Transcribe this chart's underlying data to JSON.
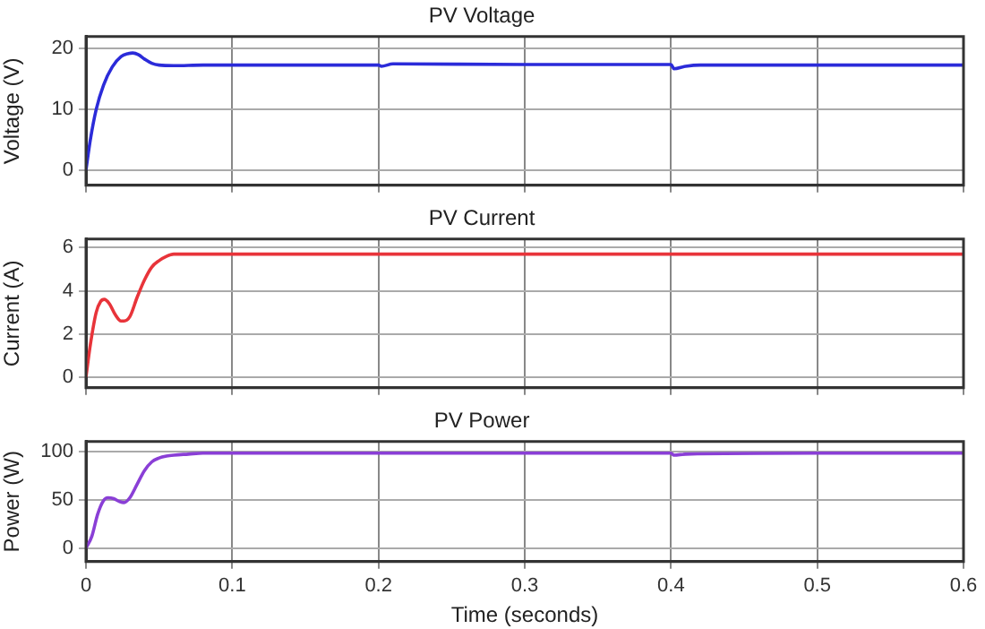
{
  "chart_data": [
    {
      "type": "line",
      "title": "PV Voltage",
      "ylabel": "Voltage (V)",
      "xlim": [
        0,
        0.6
      ],
      "xticks": [
        0,
        0.1,
        0.2,
        0.3,
        0.4,
        0.5,
        0.6
      ],
      "ylim": [
        -2.5,
        22
      ],
      "yticks": [
        0,
        10,
        20
      ],
      "grid": true,
      "tick_labels": "y",
      "legend": false,
      "series": [
        {
          "color": "#2b2bd9",
          "x": [
            0,
            0.003,
            0.007,
            0.012,
            0.018,
            0.024,
            0.029,
            0.032,
            0.036,
            0.04,
            0.045,
            0.05,
            0.06,
            0.08,
            0.1,
            0.15,
            0.2,
            0.202,
            0.21,
            0.3,
            0.4,
            0.402,
            0.41,
            0.42,
            0.45,
            0.5,
            0.6
          ],
          "values": [
            0,
            5,
            10,
            14,
            17,
            18.7,
            19.2,
            19.3,
            19,
            18.3,
            17.6,
            17.3,
            17.2,
            17.3,
            17.3,
            17.3,
            17.3,
            17.1,
            17.5,
            17.4,
            17.4,
            16.7,
            17.1,
            17.3,
            17.3,
            17.3,
            17.3
          ]
        }
      ]
    },
    {
      "type": "line",
      "title": "PV Current",
      "ylabel": "Current (A)",
      "xlim": [
        0,
        0.6
      ],
      "xticks": [
        0,
        0.1,
        0.2,
        0.3,
        0.4,
        0.5,
        0.6
      ],
      "ylim": [
        -0.5,
        6.4
      ],
      "yticks": [
        0,
        2,
        4,
        6
      ],
      "grid": true,
      "tick_labels": "y",
      "legend": false,
      "series": [
        {
          "color": "#e8343a",
          "x": [
            0,
            0.003,
            0.007,
            0.01,
            0.0125,
            0.016,
            0.02,
            0.024,
            0.026,
            0.03,
            0.035,
            0.04,
            0.045,
            0.05,
            0.055,
            0.06,
            0.07,
            0.08,
            0.1,
            0.2,
            0.3,
            0.4,
            0.5,
            0.6
          ],
          "values": [
            0,
            1.5,
            3,
            3.5,
            3.6,
            3.4,
            2.9,
            2.6,
            2.6,
            2.8,
            3.7,
            4.5,
            5.1,
            5.4,
            5.6,
            5.7,
            5.7,
            5.7,
            5.7,
            5.7,
            5.7,
            5.7,
            5.7,
            5.7
          ]
        }
      ]
    },
    {
      "type": "line",
      "title": "PV Power",
      "xlabel": "Time (seconds)",
      "ylabel": "Power (W)",
      "xlim": [
        0,
        0.6
      ],
      "xticks": [
        0,
        0.1,
        0.2,
        0.3,
        0.4,
        0.5,
        0.6
      ],
      "ylim": [
        -14,
        110
      ],
      "yticks": [
        0,
        50,
        100
      ],
      "grid": true,
      "legend": false,
      "series": [
        {
          "color": "#8a3fd6",
          "x": [
            0,
            0.004,
            0.008,
            0.012,
            0.015,
            0.019,
            0.023,
            0.026,
            0.03,
            0.035,
            0.04,
            0.045,
            0.05,
            0.055,
            0.06,
            0.07,
            0.08,
            0.1,
            0.2,
            0.3,
            0.4,
            0.402,
            0.41,
            0.5,
            0.6
          ],
          "values": [
            0,
            12,
            35,
            49,
            52,
            51,
            48,
            47,
            52,
            66,
            80,
            89,
            93,
            95,
            96,
            97,
            98,
            98,
            98,
            98,
            98,
            96,
            97,
            98,
            98
          ]
        }
      ]
    }
  ]
}
